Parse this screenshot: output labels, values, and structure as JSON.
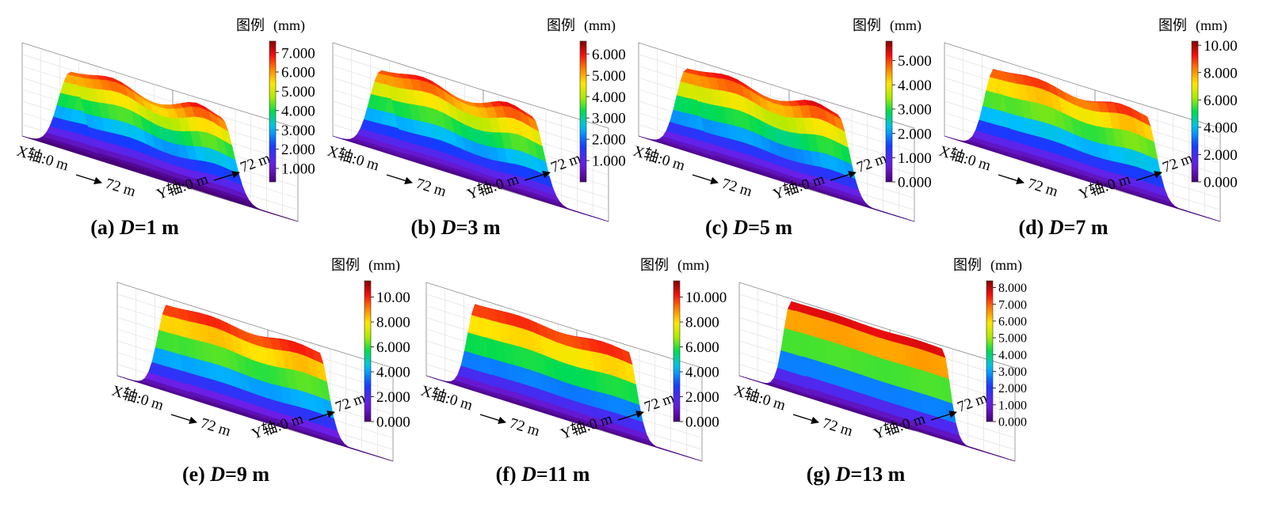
{
  "figure": {
    "legend_title": "图例",
    "legend_unit": "(mm)",
    "x_axis_label": "X轴:0 m",
    "x_axis_end": "72 m",
    "y_axis_label": "Y轴:0 m",
    "y_axis_end": "72 m"
  },
  "chart_data": [
    {
      "type": "surface",
      "caption_prefix": "(a) ",
      "caption_var": "D",
      "caption_value": "=1 m",
      "xlim": [
        0,
        72
      ],
      "ylim": [
        0,
        72
      ],
      "zlim": [
        0,
        7.6
      ],
      "colorbar_ticks": [
        "1.000",
        "2.000",
        "3.000",
        "4.000",
        "5.000",
        "6.000",
        "7.000"
      ],
      "colorbar_values": [
        1,
        2,
        3,
        4,
        5,
        6,
        7
      ],
      "colorbar_range": [
        0.3,
        7.6
      ],
      "profile": {
        "peak": 7.2,
        "x_center": 28,
        "x_width": 10,
        "shoulder": 0.5,
        "end_bump": 0.2
      }
    },
    {
      "type": "surface",
      "caption_prefix": "(b) ",
      "caption_var": "D",
      "caption_value": "=3 m",
      "xlim": [
        0,
        72
      ],
      "ylim": [
        0,
        72
      ],
      "zlim": [
        0,
        6.6
      ],
      "colorbar_ticks": [
        "1.000",
        "2.000",
        "3.000",
        "4.000",
        "5.000",
        "6.000"
      ],
      "colorbar_values": [
        1,
        2,
        3,
        4,
        5,
        6
      ],
      "colorbar_range": [
        0.0,
        6.6
      ],
      "profile": {
        "peak": 6.3,
        "x_center": 28,
        "x_width": 9.5,
        "shoulder": 0.45,
        "end_bump": 0.2
      }
    },
    {
      "type": "surface",
      "caption_prefix": "(c) ",
      "caption_var": "D",
      "caption_value": "=5 m",
      "xlim": [
        0,
        72
      ],
      "ylim": [
        0,
        72
      ],
      "zlim": [
        0,
        5.8
      ],
      "colorbar_ticks": [
        "0.000",
        "1.000",
        "2.000",
        "3.000",
        "4.000",
        "5.000"
      ],
      "colorbar_values": [
        0,
        1,
        2,
        3,
        4,
        5
      ],
      "colorbar_range": [
        0.0,
        5.8
      ],
      "profile": {
        "peak": 5.6,
        "x_center": 28,
        "x_width": 9,
        "shoulder": 0.4,
        "end_bump": 0.2
      }
    },
    {
      "type": "surface",
      "caption_prefix": "(d) ",
      "caption_var": "D",
      "caption_value": "=7 m",
      "xlim": [
        0,
        72
      ],
      "ylim": [
        0,
        72
      ],
      "zlim": [
        0,
        10.3
      ],
      "colorbar_ticks": [
        "0.000",
        "2.000",
        "4.000",
        "6.000",
        "8.000",
        "10.00"
      ],
      "colorbar_values": [
        0,
        2,
        4,
        6,
        8,
        10
      ],
      "colorbar_range": [
        0.0,
        10.3
      ],
      "profile": {
        "peak": 9.8,
        "x_center": 29,
        "x_width": 8.5,
        "shoulder": 0.3,
        "end_bump": 0.1
      }
    },
    {
      "type": "surface",
      "caption_prefix": "(e) ",
      "caption_var": "D",
      "caption_value": "=9 m",
      "xlim": [
        0,
        72
      ],
      "ylim": [
        0,
        72
      ],
      "zlim": [
        0,
        11.3
      ],
      "colorbar_ticks": [
        "0.000",
        "2.000",
        "4.000",
        "6.000",
        "8.000",
        "10.00"
      ],
      "colorbar_values": [
        0,
        2,
        4,
        6,
        8,
        10
      ],
      "colorbar_range": [
        0.0,
        11.3
      ],
      "profile": {
        "peak": 11.0,
        "x_center": 29,
        "x_width": 8,
        "shoulder": 0.2,
        "end_bump": 0.05
      }
    },
    {
      "type": "surface",
      "caption_prefix": "(f) ",
      "caption_var": "D",
      "caption_value": "=11 m",
      "xlim": [
        0,
        72
      ],
      "ylim": [
        0,
        72
      ],
      "zlim": [
        0,
        11.3
      ],
      "colorbar_ticks": [
        "0.000",
        "2.000",
        "4.000",
        "6.000",
        "8.000",
        "10.000"
      ],
      "colorbar_values": [
        0,
        2,
        4,
        6,
        8,
        10
      ],
      "colorbar_range": [
        0.0,
        11.3
      ],
      "profile": {
        "peak": 11.0,
        "x_center": 29,
        "x_width": 7.5,
        "shoulder": 0.15,
        "end_bump": 0.05
      }
    },
    {
      "type": "surface",
      "caption_prefix": "(g) ",
      "caption_var": "D",
      "caption_value": "=13 m",
      "xlim": [
        0,
        72
      ],
      "ylim": [
        0,
        72
      ],
      "zlim": [
        0,
        8.4
      ],
      "colorbar_ticks": [
        "0.000",
        "1.000",
        "2.000",
        "3.000",
        "4.000",
        "5.000",
        "6.000",
        "7.000",
        "8.000"
      ],
      "colorbar_values": [
        0,
        1,
        2,
        3,
        4,
        5,
        6,
        7,
        8
      ],
      "colorbar_range": [
        0.0,
        8.4
      ],
      "profile": {
        "peak": 8.2,
        "x_center": 30,
        "x_width": 6.5,
        "shoulder": 0.05,
        "end_bump": 0.0
      }
    }
  ]
}
